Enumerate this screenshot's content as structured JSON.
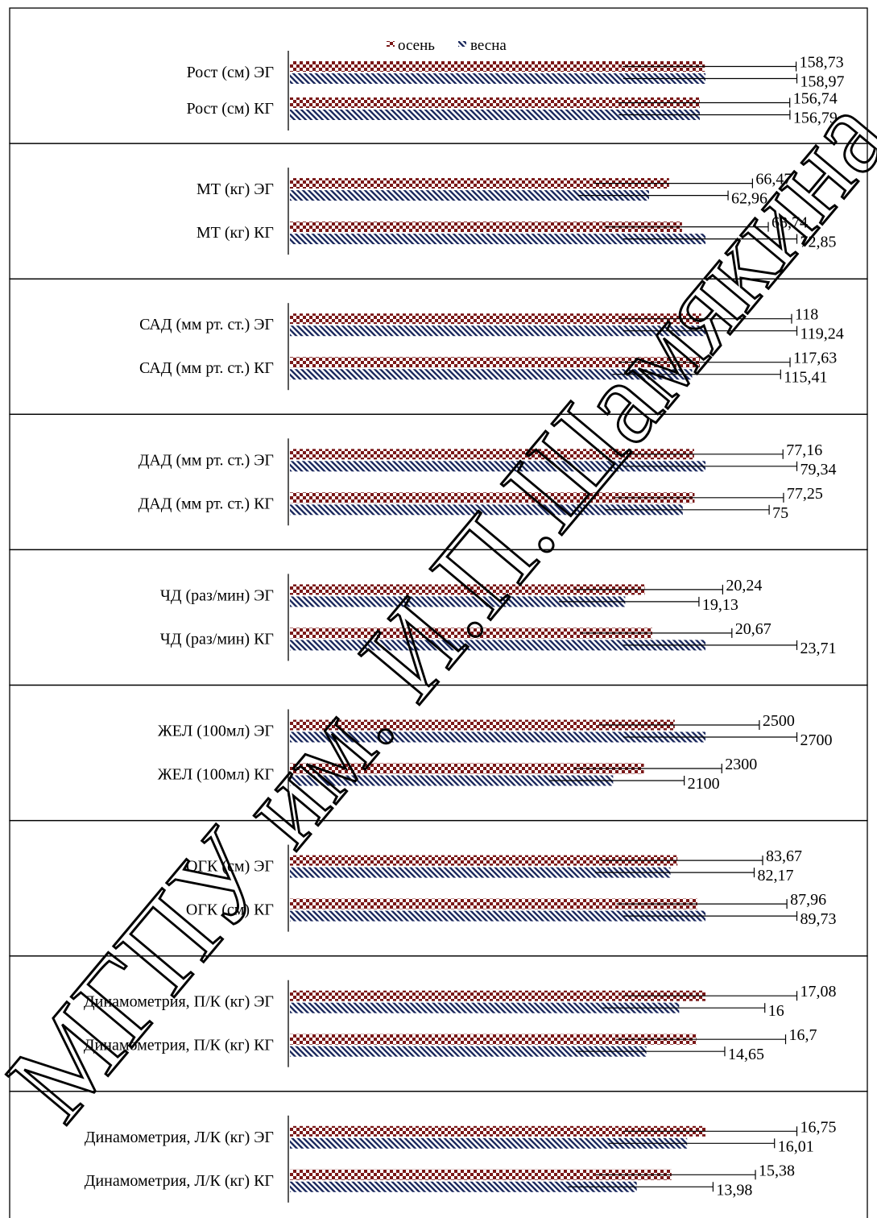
{
  "chart_data": {
    "type": "bar",
    "orientation": "horizontal",
    "error_bars": true,
    "grid": false,
    "legend_position": "top",
    "series": [
      {
        "name": "осень",
        "color": "#7a1818",
        "pattern": "checkerboard"
      },
      {
        "name": "весна",
        "color": "#1c2a5e",
        "pattern": "diagonal-hatch"
      }
    ],
    "groups": [
      {
        "rows": [
          {
            "label": "Рост (см) ЭГ",
            "values": [
              158.73,
              158.97
            ],
            "value_labels": [
              "158,73",
              "158,97"
            ]
          },
          {
            "label": "Рост (см) КГ",
            "values": [
              156.74,
              156.79
            ],
            "value_labels": [
              "156,74",
              "156,79"
            ]
          }
        ]
      },
      {
        "rows": [
          {
            "label": "МТ (кг) ЭГ",
            "values": [
              66.47,
              62.96
            ],
            "value_labels": [
              "66,47",
              "62,96"
            ]
          },
          {
            "label": "МТ (кг) КГ",
            "values": [
              68.74,
              72.85
            ],
            "value_labels": [
              "68,74",
              "72,85"
            ]
          }
        ]
      },
      {
        "rows": [
          {
            "label": "САД (мм рт. ст.) ЭГ",
            "values": [
              118,
              119.24
            ],
            "value_labels": [
              "118",
              "119,24"
            ]
          },
          {
            "label": "САД (мм рт. ст.) КГ",
            "values": [
              117.63,
              115.41
            ],
            "value_labels": [
              "117,63",
              "115,41"
            ]
          }
        ]
      },
      {
        "rows": [
          {
            "label": "ДАД (мм рт. ст.) ЭГ",
            "values": [
              77.16,
              79.34
            ],
            "value_labels": [
              "77,16",
              "79,34"
            ]
          },
          {
            "label": "ДАД (мм рт. ст.) КГ",
            "values": [
              77.25,
              75
            ],
            "value_labels": [
              "77,25",
              "75"
            ]
          }
        ]
      },
      {
        "rows": [
          {
            "label": "ЧД (раз/мин) ЭГ",
            "values": [
              20.24,
              19.13
            ],
            "value_labels": [
              "20,24",
              "19,13"
            ]
          },
          {
            "label": "ЧД (раз/мин) КГ",
            "values": [
              20.67,
              23.71
            ],
            "value_labels": [
              "20,67",
              "23,71"
            ]
          }
        ]
      },
      {
        "rows": [
          {
            "label": "ЖЕЛ (100мл) ЭГ",
            "values": [
              2500,
              2700
            ],
            "value_labels": [
              "2500",
              "2700"
            ]
          },
          {
            "label": "ЖЕЛ (100мл) КГ",
            "values": [
              2300,
              2100
            ],
            "value_labels": [
              "2300",
              "2100"
            ]
          }
        ]
      },
      {
        "rows": [
          {
            "label": "ОГК (см) ЭГ",
            "values": [
              83.67,
              82.17
            ],
            "value_labels": [
              "83,67",
              "82,17"
            ]
          },
          {
            "label": "ОГК (см) КГ",
            "values": [
              87.96,
              89.73
            ],
            "value_labels": [
              "87,96",
              "89,73"
            ]
          }
        ]
      },
      {
        "rows": [
          {
            "label": "Динамометрия,  П/К (кг) ЭГ",
            "values": [
              17.08,
              16
            ],
            "value_labels": [
              "17,08",
              "16"
            ]
          },
          {
            "label": "Динамометрия,  П/К (кг) КГ",
            "values": [
              16.7,
              14.65
            ],
            "value_labels": [
              "16,7",
              "14,65"
            ]
          }
        ]
      },
      {
        "rows": [
          {
            "label": "Динамометрия,  Л/К (кг) ЭГ",
            "values": [
              16.75,
              16.01
            ],
            "value_labels": [
              "16,75",
              "16,01"
            ]
          },
          {
            "label": "Динамометрия,  Л/К (кг) КГ",
            "values": [
              15.38,
              13.98
            ],
            "value_labels": [
              "15,38",
              "13,98"
            ]
          }
        ]
      }
    ]
  },
  "watermark": "МГПУ им. И.П.Шамякина"
}
